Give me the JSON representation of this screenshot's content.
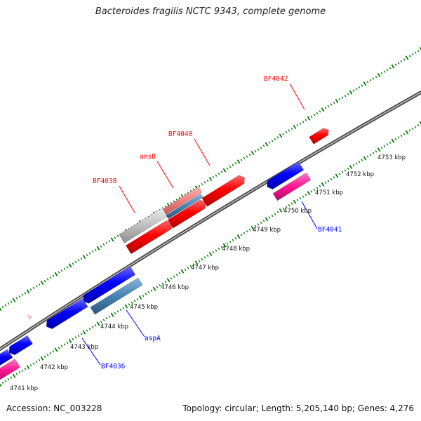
{
  "title": "Bacteroides fragilis NCTC 9343, complete genome",
  "footer": {
    "accession": "Accession: NC_003228",
    "topology": "Topology: circular; Length: 5,205,140 bp; Genes: 4,276"
  },
  "colors": {
    "forward_cds": "#ff0000",
    "reverse_cds": "#0000ff",
    "forward_light": "#f08080",
    "reverse_light": "#4682b4",
    "pink": "#ff1493",
    "grey": "#c0c0c0",
    "tick": "#008000",
    "backbone": "#808080"
  },
  "ticks": [
    {
      "label": "4741 kbp"
    },
    {
      "label": "4742 kbp"
    },
    {
      "label": "4743 kbp"
    },
    {
      "label": "4744 kbp"
    },
    {
      "label": "4745 kbp"
    },
    {
      "label": "4746 kbp"
    },
    {
      "label": "4747 kbp"
    },
    {
      "label": "4748 kbp"
    },
    {
      "label": "4749 kbp"
    },
    {
      "label": "4750 kbp"
    },
    {
      "label": "4751 kbp"
    },
    {
      "label": "4752 kbp"
    },
    {
      "label": "4753 kbp"
    }
  ],
  "gene_labels": [
    {
      "text": "BF4042",
      "strand": "forward"
    },
    {
      "text": "BF4040",
      "strand": "forward"
    },
    {
      "text": "ansB",
      "strand": "forward"
    },
    {
      "text": "BF4038",
      "strand": "forward"
    },
    {
      "text": "BF4041",
      "strand": "reverse"
    },
    {
      "text": "aspA",
      "strand": "reverse"
    },
    {
      "text": "BF4036",
      "strand": "reverse"
    }
  ]
}
